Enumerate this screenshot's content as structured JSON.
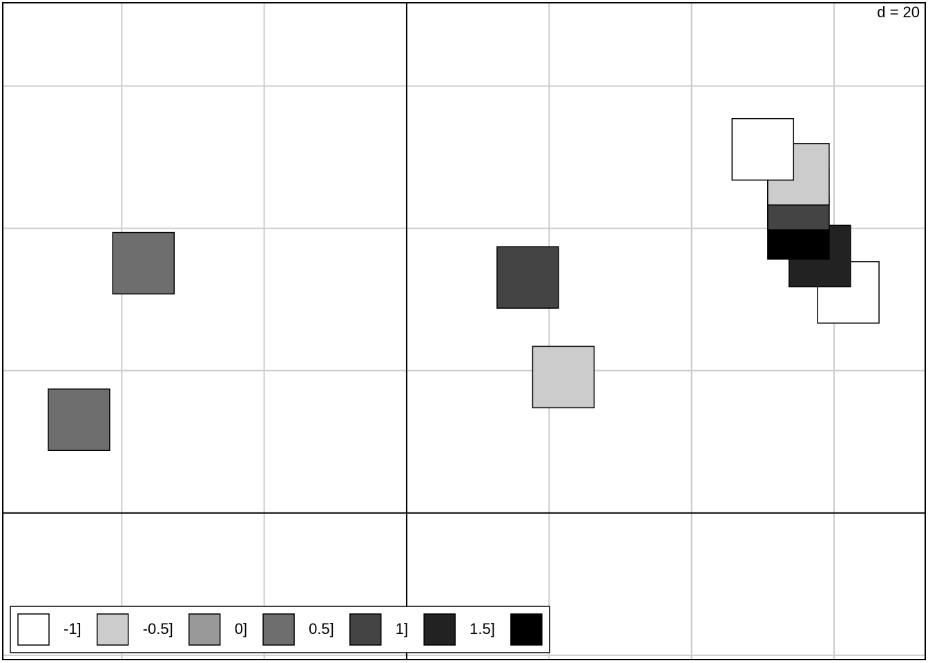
{
  "chart_data": {
    "type": "scatter",
    "annotation": "d = 20",
    "xlim": [
      -56.7,
      72.8
    ],
    "ylim": [
      -20.6,
      71.7
    ],
    "xticks": [
      -40,
      -20,
      0,
      20,
      40,
      60
    ],
    "yticks": [
      -20,
      0,
      20,
      40,
      60
    ],
    "grid": true,
    "legend_position": "bottom-left",
    "points": [
      {
        "x": -36.95,
        "y": 35.1,
        "color": "#6e6e6e"
      },
      {
        "x": -46.0,
        "y": 13.1,
        "color": "#6e6e6e"
      },
      {
        "x": 17.0,
        "y": 33.1,
        "color": "#444444"
      },
      {
        "x": 22.0,
        "y": 19.1,
        "color": "#cccccc"
      },
      {
        "x": 62.0,
        "y": 31.0,
        "color": "#ffffff"
      },
      {
        "x": 58.0,
        "y": 36.1,
        "color": "#222222"
      },
      {
        "x": 55.0,
        "y": 40.0,
        "color": "#000000"
      },
      {
        "x": 55.0,
        "y": 44.1,
        "color": "#444444"
      },
      {
        "x": 55.0,
        "y": 47.6,
        "color": "#cccccc"
      },
      {
        "x": 50.0,
        "y": 51.1,
        "color": "#ffffff"
      }
    ],
    "legend": [
      {
        "label": "-1]",
        "color": "#ffffff"
      },
      {
        "label": "-0.5]",
        "color": "#cccccc"
      },
      {
        "label": "0]",
        "color": "#999999"
      },
      {
        "label": "0.5]",
        "color": "#6e6e6e"
      },
      {
        "label": "1]",
        "color": "#444444"
      },
      {
        "label": "1.5]",
        "color": "#222222"
      },
      {
        "label": null,
        "color": "#000000"
      }
    ]
  }
}
